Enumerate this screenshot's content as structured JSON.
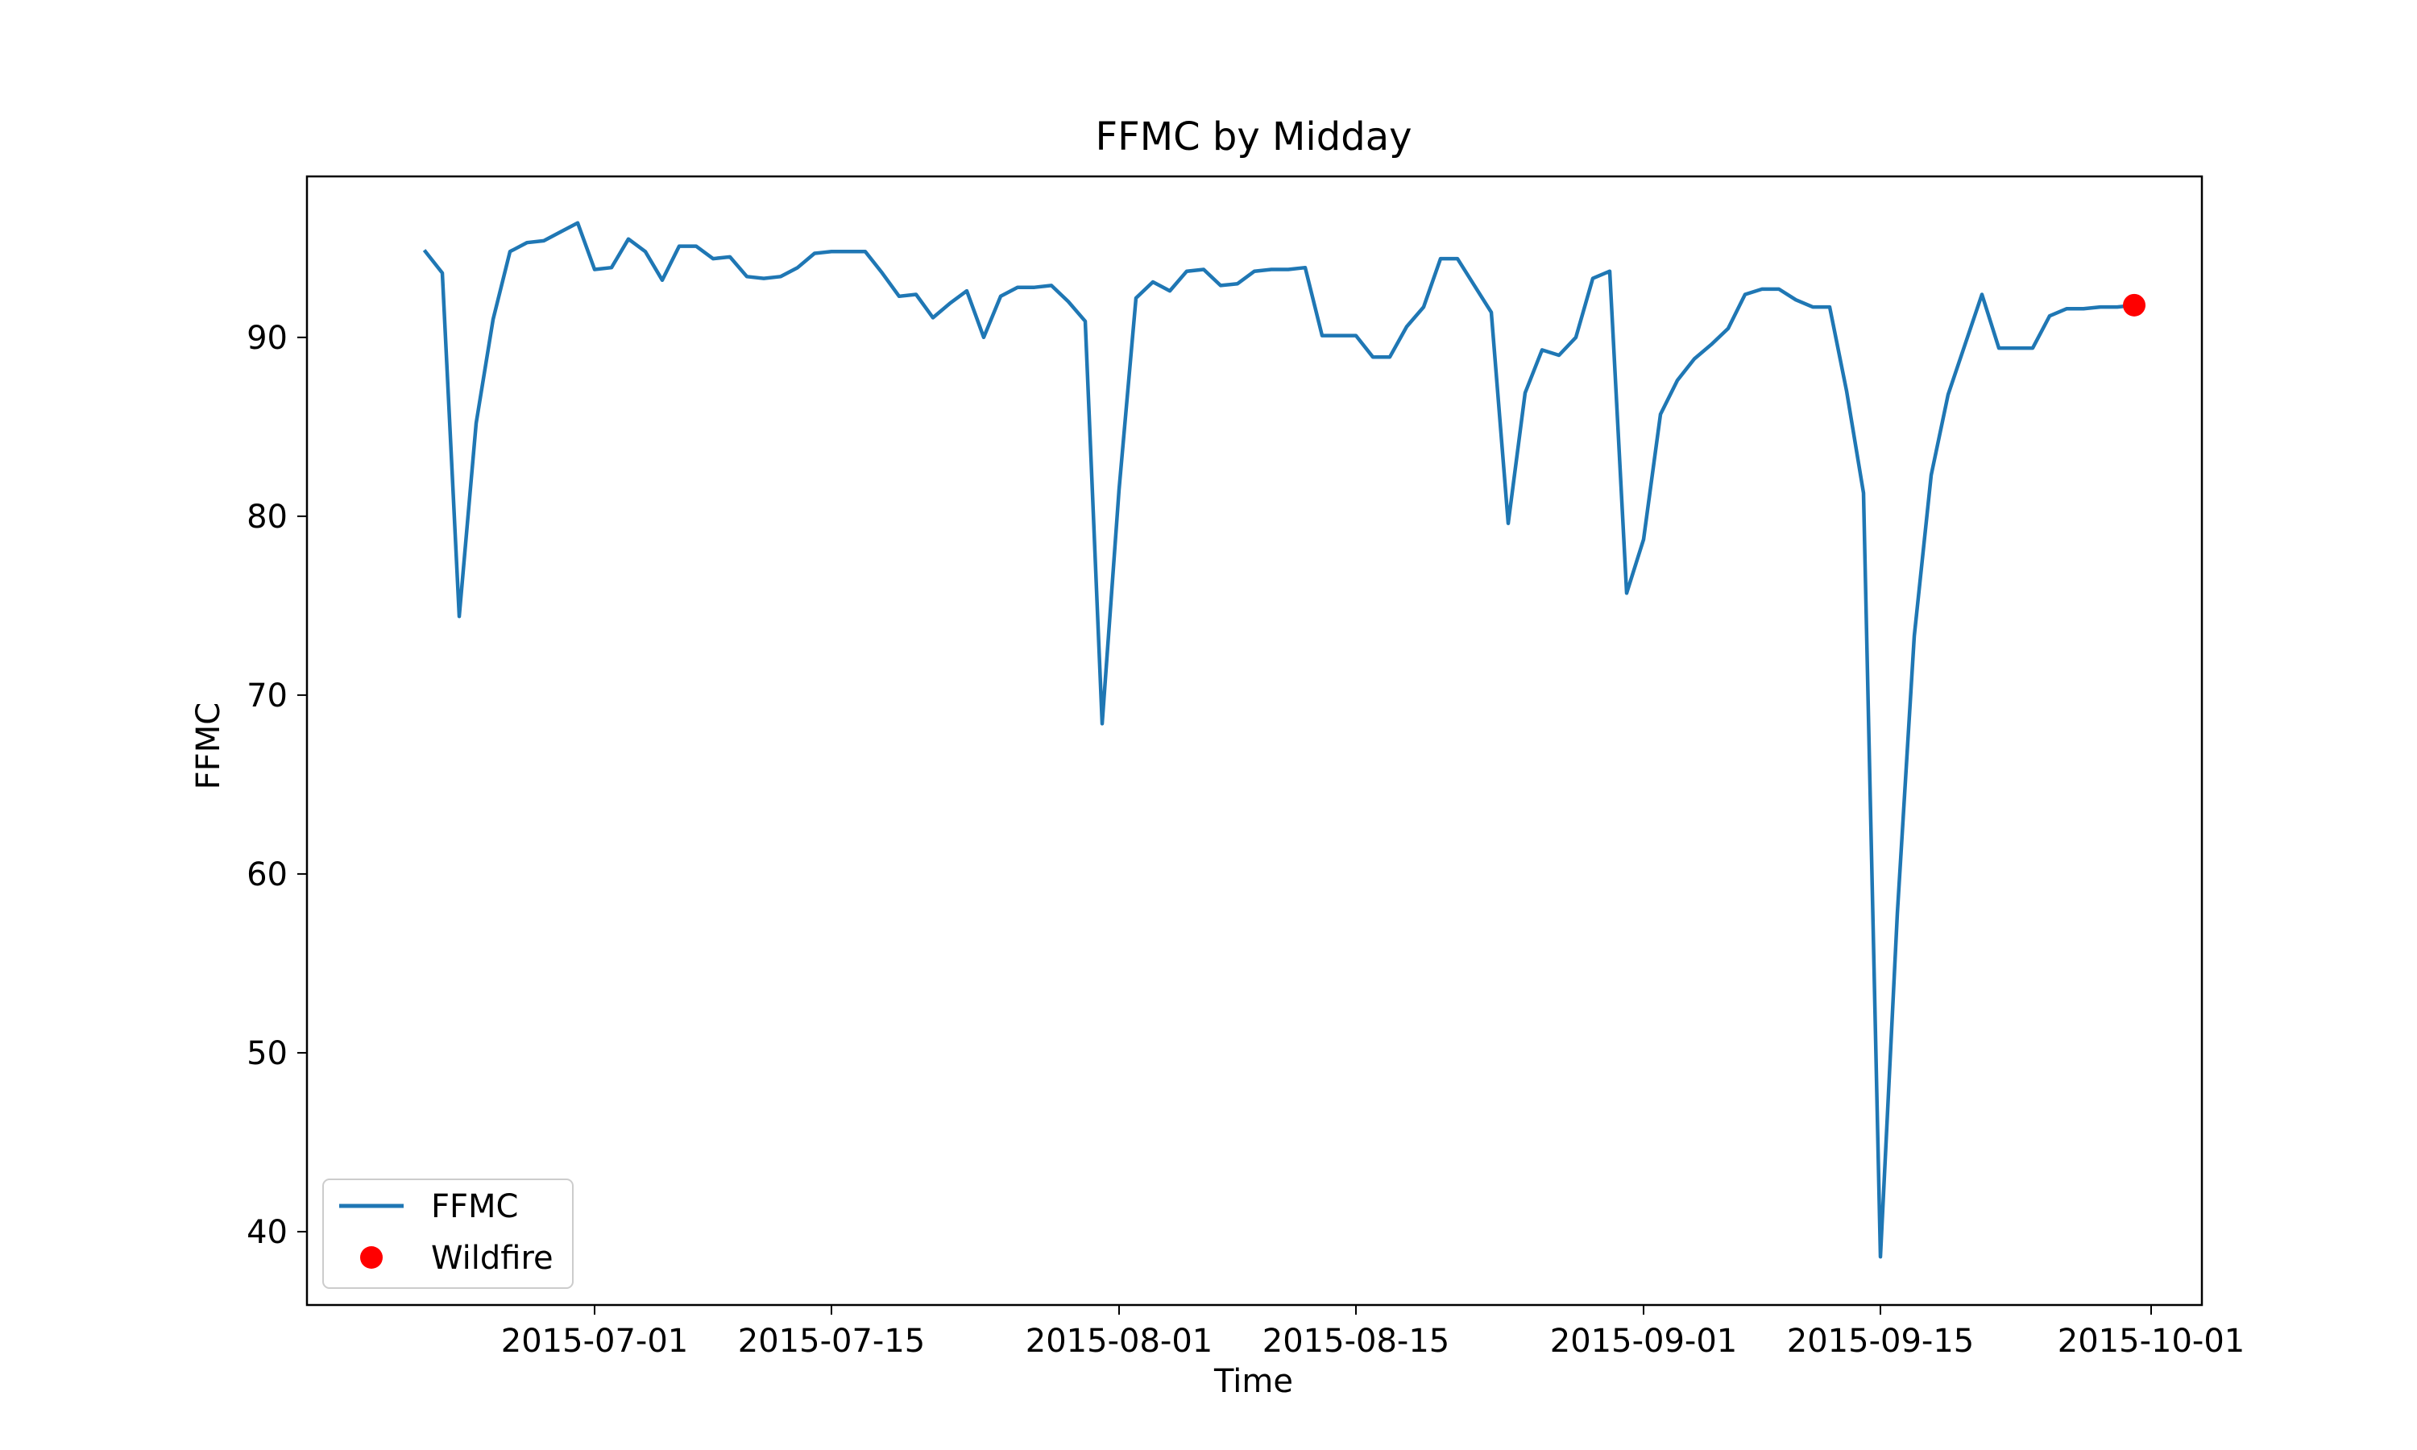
{
  "chart_data": {
    "type": "line",
    "title": "FFMC by Midday",
    "xlabel": "Time",
    "ylabel": "FFMC",
    "x_axis_type": "date",
    "xlim": [
      "2015-06-14",
      "2015-10-04"
    ],
    "ylim": [
      35.9,
      99.0
    ],
    "grid": false,
    "legend_position": "lower-left",
    "x_ticks": [
      "2015-07-01",
      "2015-07-15",
      "2015-08-01",
      "2015-08-15",
      "2015-09-01",
      "2015-09-15",
      "2015-10-01"
    ],
    "y_ticks": [
      40,
      50,
      60,
      70,
      80,
      90
    ],
    "colors": {
      "line": "#1f77b4",
      "wildfire": "#ff0000",
      "legend_border": "#cccccc"
    },
    "series": [
      {
        "name": "FFMC",
        "kind": "line",
        "x": [
          "2015-06-21",
          "2015-06-22",
          "2015-06-23",
          "2015-06-24",
          "2015-06-25",
          "2015-06-26",
          "2015-06-27",
          "2015-06-28",
          "2015-06-29",
          "2015-06-30",
          "2015-07-01",
          "2015-07-02",
          "2015-07-03",
          "2015-07-04",
          "2015-07-05",
          "2015-07-06",
          "2015-07-07",
          "2015-07-08",
          "2015-07-09",
          "2015-07-10",
          "2015-07-11",
          "2015-07-12",
          "2015-07-13",
          "2015-07-14",
          "2015-07-15",
          "2015-07-16",
          "2015-07-17",
          "2015-07-18",
          "2015-07-19",
          "2015-07-20",
          "2015-07-21",
          "2015-07-22",
          "2015-07-23",
          "2015-07-24",
          "2015-07-25",
          "2015-07-26",
          "2015-07-27",
          "2015-07-28",
          "2015-07-29",
          "2015-07-30",
          "2015-07-31",
          "2015-08-01",
          "2015-08-02",
          "2015-08-03",
          "2015-08-04",
          "2015-08-05",
          "2015-08-06",
          "2015-08-07",
          "2015-08-08",
          "2015-08-09",
          "2015-08-10",
          "2015-08-11",
          "2015-08-12",
          "2015-08-13",
          "2015-08-14",
          "2015-08-15",
          "2015-08-16",
          "2015-08-17",
          "2015-08-18",
          "2015-08-19",
          "2015-08-20",
          "2015-08-21",
          "2015-08-22",
          "2015-08-23",
          "2015-08-24",
          "2015-08-25",
          "2015-08-26",
          "2015-08-27",
          "2015-08-28",
          "2015-08-29",
          "2015-08-30",
          "2015-08-31",
          "2015-09-01",
          "2015-09-02",
          "2015-09-03",
          "2015-09-04",
          "2015-09-05",
          "2015-09-06",
          "2015-09-07",
          "2015-09-08",
          "2015-09-09",
          "2015-09-10",
          "2015-09-11",
          "2015-09-12",
          "2015-09-13",
          "2015-09-14",
          "2015-09-15",
          "2015-09-16",
          "2015-09-17",
          "2015-09-18",
          "2015-09-19",
          "2015-09-20",
          "2015-09-21",
          "2015-09-22",
          "2015-09-23",
          "2015-09-24",
          "2015-09-25",
          "2015-09-26",
          "2015-09-27",
          "2015-09-28",
          "2015-09-29",
          "2015-09-30"
        ],
        "y": [
          94.8,
          93.6,
          74.4,
          85.2,
          91.0,
          94.8,
          95.3,
          95.4,
          95.9,
          96.4,
          93.8,
          93.9,
          95.5,
          94.8,
          93.2,
          95.1,
          95.1,
          94.4,
          94.5,
          93.4,
          93.3,
          93.4,
          93.9,
          94.7,
          94.8,
          94.8,
          94.8,
          93.6,
          92.3,
          92.4,
          91.1,
          91.9,
          92.6,
          90.0,
          92.3,
          92.8,
          92.8,
          92.9,
          92.0,
          90.9,
          68.4,
          81.5,
          92.2,
          93.1,
          92.6,
          93.7,
          93.8,
          92.9,
          93.0,
          93.7,
          93.8,
          93.8,
          93.9,
          90.1,
          90.1,
          90.1,
          88.9,
          88.9,
          90.6,
          91.7,
          94.4,
          94.4,
          92.9,
          91.4,
          79.6,
          86.9,
          89.3,
          89.0,
          90.0,
          93.3,
          93.7,
          75.7,
          78.7,
          85.7,
          87.6,
          88.8,
          89.6,
          90.5,
          92.4,
          92.7,
          92.7,
          92.1,
          91.7,
          91.7,
          87.0,
          81.3,
          38.6,
          57.8,
          73.3,
          82.3,
          86.8,
          89.6,
          92.4,
          89.4,
          89.4,
          89.4,
          91.2,
          91.6,
          91.6,
          91.7,
          91.7,
          91.8
        ]
      },
      {
        "name": "Wildfire",
        "kind": "scatter",
        "x": [
          "2015-09-30"
        ],
        "y": [
          91.8
        ]
      }
    ]
  }
}
